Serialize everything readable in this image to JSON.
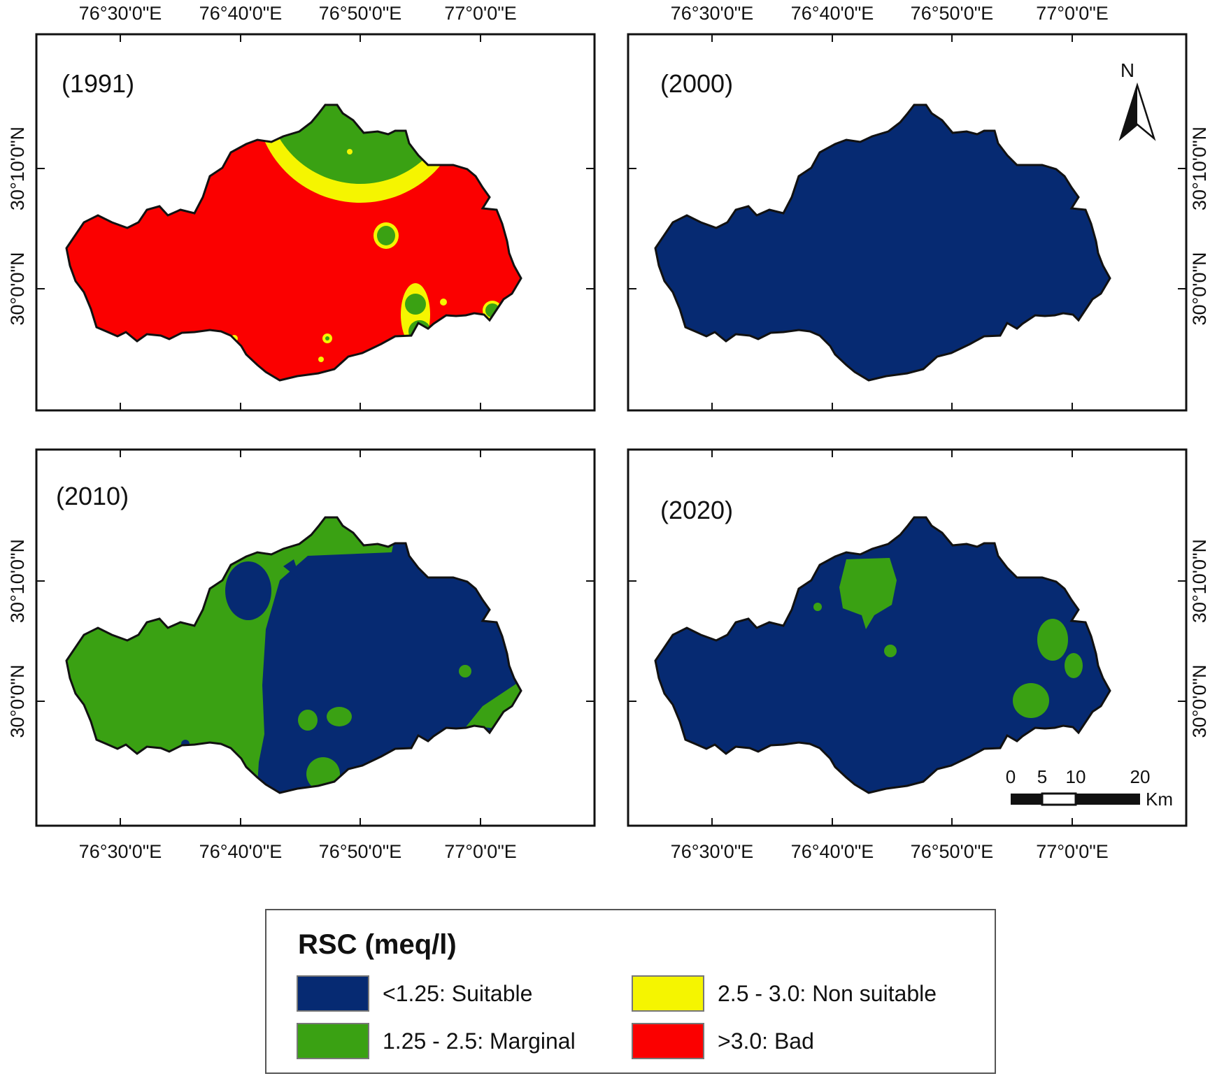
{
  "maps": [
    {
      "id": "1991",
      "year_label": "(1991)",
      "base_class": "bad"
    },
    {
      "id": "2000",
      "year_label": "(2000)",
      "base_class": "suitable"
    },
    {
      "id": "2010",
      "year_label": "(2010)",
      "base_class": "suitable"
    },
    {
      "id": "2020",
      "year_label": "(2020)",
      "base_class": "suitable"
    }
  ],
  "axes": {
    "longitude_ticks": [
      "76°30'0\"E",
      "76°40'0\"E",
      "76°50'0\"E",
      "77°0'0\"E"
    ],
    "latitude_ticks": [
      "30°10'0\"N",
      "30°0'0\"N"
    ]
  },
  "north_arrow": {
    "label": "N"
  },
  "scale_bar": {
    "ticks": [
      "0",
      "5",
      "10",
      "20"
    ],
    "unit": "Km"
  },
  "legend": {
    "title": "RSC (meq/l)",
    "items": [
      {
        "key": "suitable",
        "label": "<1.25: Suitable",
        "color": "#062a72"
      },
      {
        "key": "marginal",
        "label": "1.25 - 2.5: Marginal",
        "color": "#3aa113"
      },
      {
        "key": "non_suitable",
        "label": "2.5 - 3.0: Non suitable",
        "color": "#f5f500"
      },
      {
        "key": "bad",
        "label": ">3.0: Bad",
        "color": "#fb0000"
      }
    ]
  },
  "colors": {
    "suitable": "#062a72",
    "marginal": "#3aa113",
    "non_suitable": "#f5f500",
    "bad": "#fb0000",
    "frame": "#111111"
  }
}
